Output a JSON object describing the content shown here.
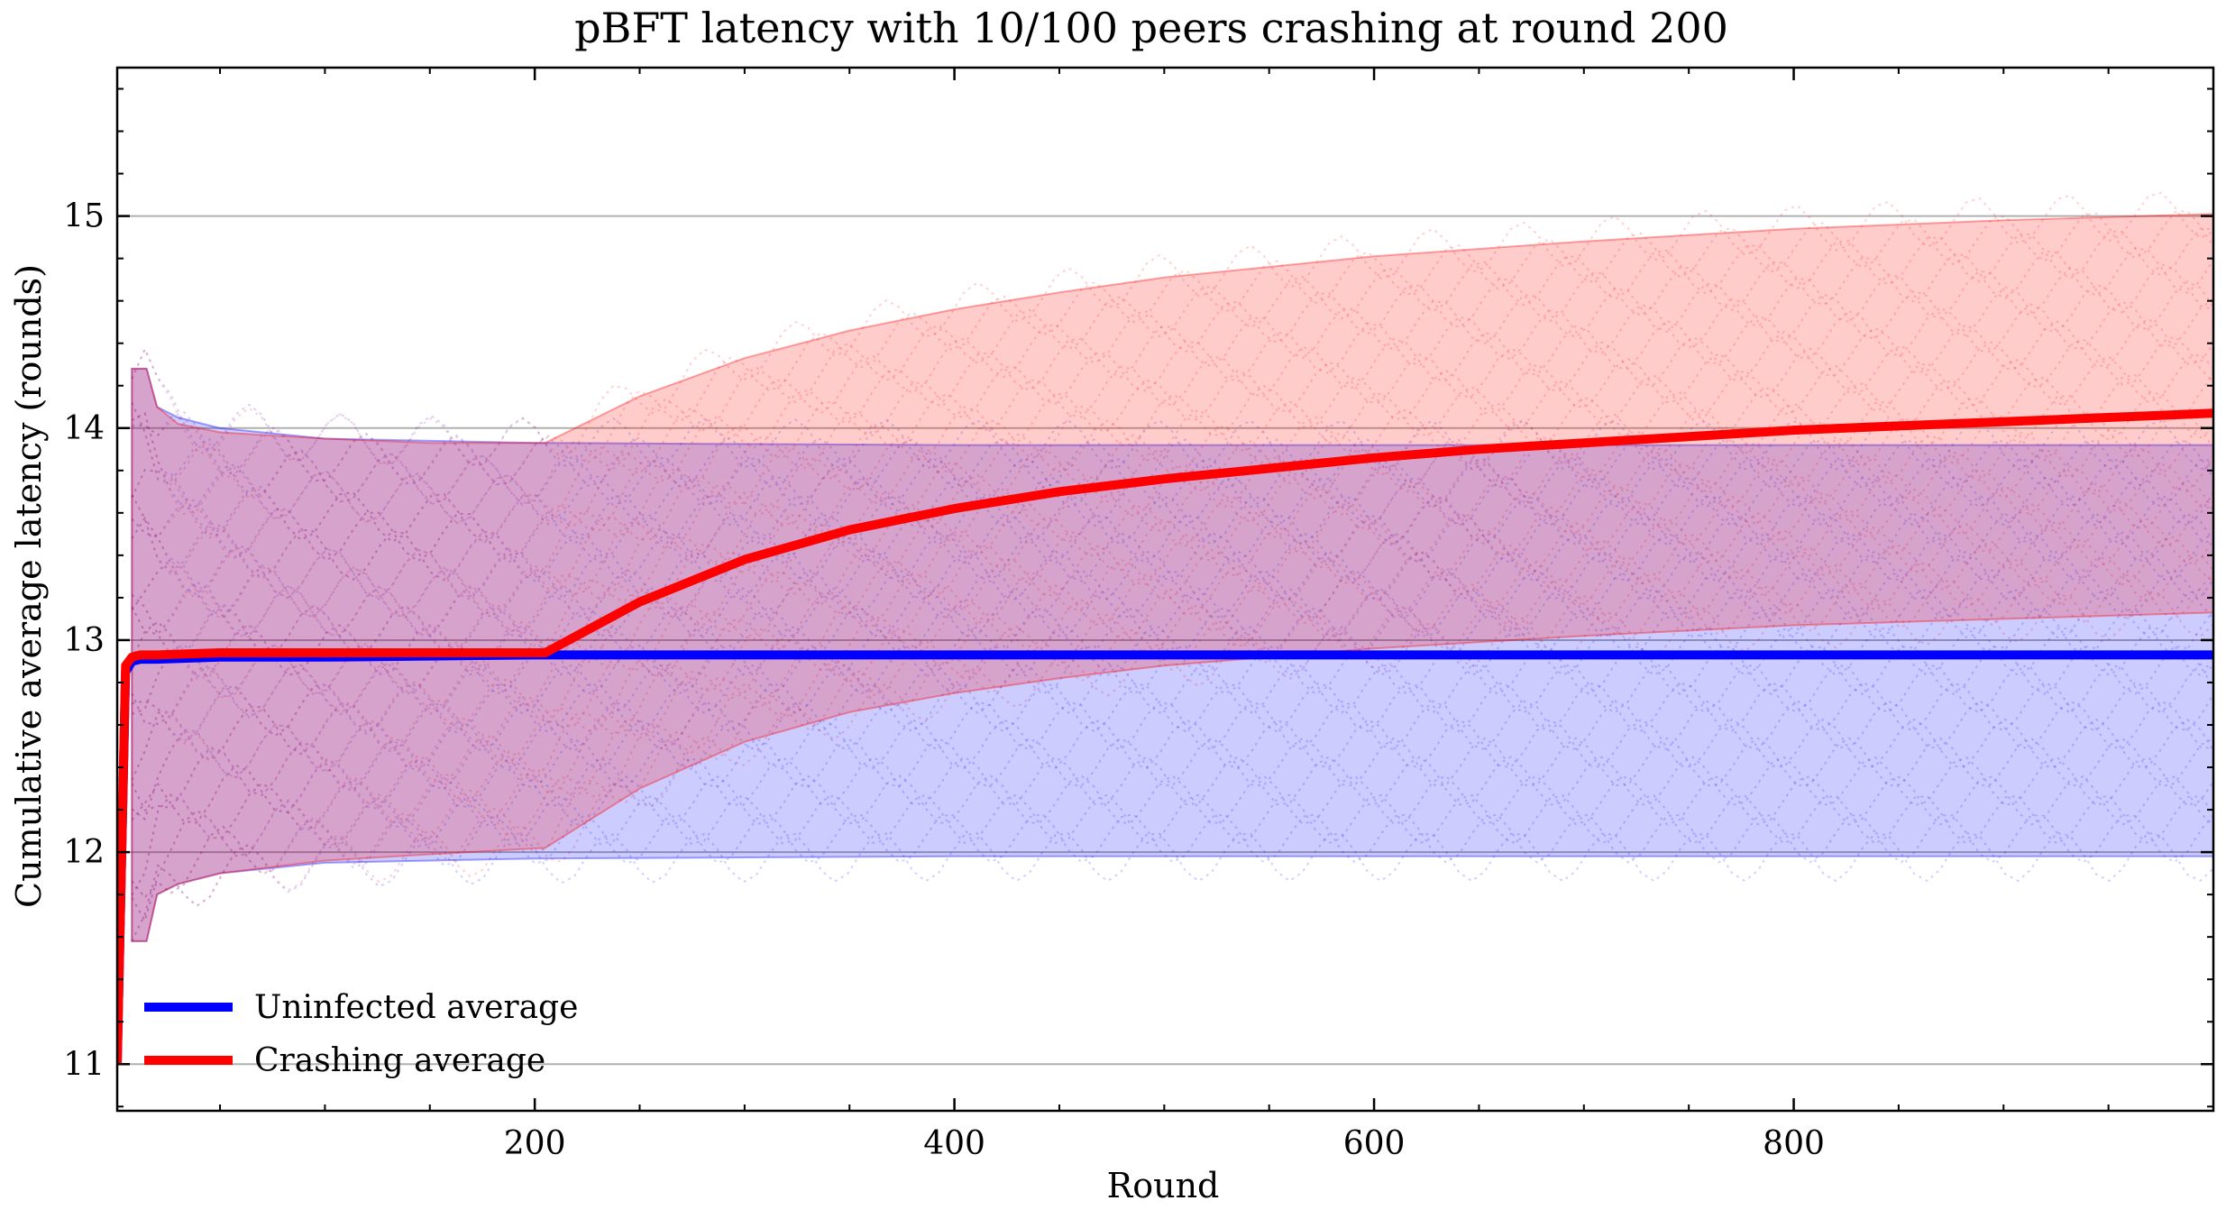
{
  "chart_data": {
    "type": "line",
    "title": "pBFT latency with 10/100 peers crashing at round 200",
    "xlabel": "Round",
    "ylabel": "Cumulative average latency (rounds)",
    "xlim": [
      1,
      1000
    ],
    "ylim": [
      10.78,
      15.7
    ],
    "x_ticks": [
      200,
      400,
      600,
      800
    ],
    "y_ticks": [
      11,
      12,
      13,
      14,
      15
    ],
    "grid_y": true,
    "legend_position": "lower-left",
    "series": [
      {
        "name": "Uninfected average",
        "color": "#0000ff",
        "x": [
          1,
          5,
          8,
          12,
          20,
          50,
          100,
          200,
          400,
          600,
          800,
          1000
        ],
        "y": [
          11.0,
          12.85,
          12.9,
          12.91,
          12.91,
          12.92,
          12.92,
          12.93,
          12.93,
          12.93,
          12.93,
          12.93
        ]
      },
      {
        "name": "Crashing average",
        "color": "#ff0000",
        "x": [
          1,
          5,
          8,
          12,
          20,
          50,
          100,
          150,
          205,
          220,
          250,
          300,
          350,
          400,
          450,
          500,
          550,
          600,
          650,
          700,
          750,
          800,
          850,
          900,
          950,
          1000
        ],
        "y": [
          11.0,
          12.88,
          12.92,
          12.93,
          12.93,
          12.94,
          12.94,
          12.94,
          12.94,
          13.02,
          13.18,
          13.38,
          13.52,
          13.62,
          13.7,
          13.76,
          13.81,
          13.86,
          13.9,
          13.93,
          13.96,
          13.99,
          14.01,
          14.03,
          14.05,
          14.07
        ]
      }
    ],
    "bands": [
      {
        "label": "uninfected-spread",
        "color": "#0000ff",
        "x": [
          8,
          15,
          20,
          30,
          50,
          100,
          200,
          400,
          600,
          800,
          1000
        ],
        "upper": [
          14.28,
          14.28,
          14.1,
          14.05,
          14.0,
          13.95,
          13.93,
          13.92,
          13.92,
          13.92,
          13.92
        ],
        "lower": [
          11.58,
          11.58,
          11.8,
          11.85,
          11.9,
          11.95,
          11.97,
          11.98,
          11.98,
          11.98,
          11.98
        ]
      },
      {
        "label": "crashing-spread",
        "color": "#ff0000",
        "x": [
          8,
          15,
          20,
          30,
          50,
          100,
          150,
          205,
          250,
          300,
          350,
          400,
          450,
          500,
          600,
          700,
          800,
          900,
          1000
        ],
        "upper": [
          14.28,
          14.28,
          14.1,
          14.02,
          13.98,
          13.95,
          13.93,
          13.93,
          14.15,
          14.33,
          14.46,
          14.56,
          14.64,
          14.71,
          14.81,
          14.88,
          14.94,
          14.98,
          15.01
        ],
        "lower": [
          11.58,
          11.58,
          11.8,
          11.85,
          11.9,
          11.96,
          11.99,
          12.02,
          12.3,
          12.52,
          12.66,
          12.75,
          12.82,
          12.88,
          12.96,
          13.02,
          13.07,
          13.1,
          13.13
        ]
      }
    ]
  }
}
